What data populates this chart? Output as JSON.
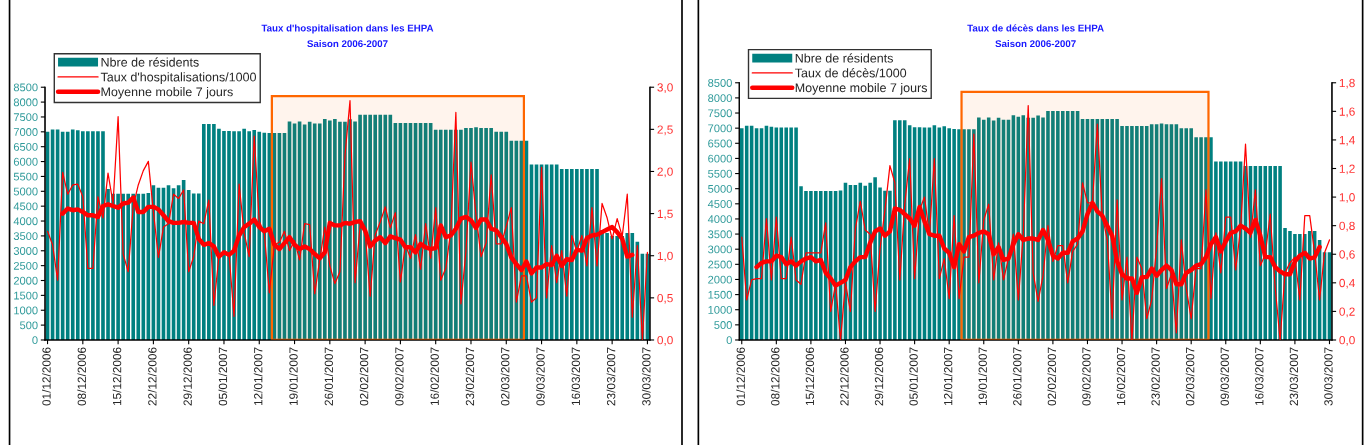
{
  "chart_data": [
    {
      "type": "bar",
      "title": "Taux d'hospitalisation dans les EHPA",
      "subtitle": "Saison 2006-2007",
      "x": [
        "2006-12-01",
        "2006-12-02",
        "2006-12-03",
        "2006-12-04",
        "2006-12-05",
        "2006-12-06",
        "2006-12-07",
        "2006-12-08",
        "2006-12-09",
        "2006-12-10",
        "2006-12-11",
        "2006-12-12",
        "2006-12-13",
        "2006-12-14",
        "2006-12-15",
        "2006-12-16",
        "2006-12-17",
        "2006-12-18",
        "2006-12-19",
        "2006-12-20",
        "2006-12-21",
        "2006-12-22",
        "2006-12-23",
        "2006-12-24",
        "2006-12-25",
        "2006-12-26",
        "2006-12-27",
        "2006-12-28",
        "2006-12-29",
        "2006-12-30",
        "2006-12-31",
        "2007-01-01",
        "2007-01-02",
        "2007-01-03",
        "2007-01-04",
        "2007-01-05",
        "2007-01-06",
        "2007-01-07",
        "2007-01-08",
        "2007-01-09",
        "2007-01-10",
        "2007-01-11",
        "2007-01-12",
        "2007-01-13",
        "2007-01-14",
        "2007-01-15",
        "2007-01-16",
        "2007-01-17",
        "2007-01-18",
        "2007-01-19",
        "2007-01-20",
        "2007-01-21",
        "2007-01-22",
        "2007-01-23",
        "2007-01-24",
        "2007-01-25",
        "2007-01-26",
        "2007-01-27",
        "2007-01-28",
        "2007-01-29",
        "2007-01-30",
        "2007-01-31",
        "2007-02-01",
        "2007-02-02",
        "2007-02-03",
        "2007-02-04",
        "2007-02-05",
        "2007-02-06",
        "2007-02-07",
        "2007-02-08",
        "2007-02-09",
        "2007-02-10",
        "2007-02-11",
        "2007-02-12",
        "2007-02-13",
        "2007-02-14",
        "2007-02-15",
        "2007-02-16",
        "2007-02-17",
        "2007-02-18",
        "2007-02-19",
        "2007-02-20",
        "2007-02-21",
        "2007-02-22",
        "2007-02-23",
        "2007-02-24",
        "2007-02-25",
        "2007-02-26",
        "2007-02-27",
        "2007-02-28",
        "2007-03-01",
        "2007-03-02",
        "2007-03-03",
        "2007-03-04",
        "2007-03-05",
        "2007-03-06",
        "2007-03-07",
        "2007-03-08",
        "2007-03-09",
        "2007-03-10",
        "2007-03-11",
        "2007-03-12",
        "2007-03-13",
        "2007-03-14",
        "2007-03-15",
        "2007-03-16",
        "2007-03-17",
        "2007-03-18",
        "2007-03-19",
        "2007-03-20",
        "2007-03-21",
        "2007-03-22",
        "2007-03-23",
        "2007-03-24",
        "2007-03-25",
        "2007-03-26",
        "2007-03-27",
        "2007-03-28",
        "2007-03-29",
        "2007-03-30"
      ],
      "xlim": [
        "2006-11-30T12:00",
        "2007-03-30T12:00"
      ],
      "xticks": [
        {
          "value": "2006-12-01",
          "label": "01/12/2006"
        },
        {
          "value": "2006-12-08",
          "label": "08/12/2006"
        },
        {
          "value": "2006-12-15",
          "label": "15/12/2006"
        },
        {
          "value": "2006-12-22",
          "label": "22/12/2006"
        },
        {
          "value": "2006-12-29",
          "label": "29/12/2006"
        },
        {
          "value": "2007-01-05",
          "label": "05/01/2007"
        },
        {
          "value": "2007-01-12",
          "label": "12/01/2007"
        },
        {
          "value": "2007-01-19",
          "label": "19/01/2007"
        },
        {
          "value": "2007-01-26",
          "label": "26/01/2007"
        },
        {
          "value": "2007-02-02",
          "label": "02/02/2007"
        },
        {
          "value": "2007-02-09",
          "label": "09/02/2007"
        },
        {
          "value": "2007-02-16",
          "label": "16/02/2007"
        },
        {
          "value": "2007-02-23",
          "label": "23/02/2007"
        },
        {
          "value": "2007-03-02",
          "label": "02/03/2007"
        },
        {
          "value": "2007-03-09",
          "label": "09/03/2007"
        },
        {
          "value": "2007-03-16",
          "label": "16/03/2007"
        },
        {
          "value": "2007-03-23",
          "label": "23/03/2007"
        },
        {
          "value": "2007-03-30",
          "label": "30/03/2007"
        }
      ],
      "ylim": [
        0,
        8500
      ],
      "yticks": [
        0,
        500,
        1000,
        1500,
        2000,
        2500,
        3000,
        3500,
        4000,
        4500,
        5000,
        5500,
        6000,
        6500,
        7000,
        7500,
        8000,
        8500
      ],
      "y2lim": [
        0,
        3.0
      ],
      "y2ticks": [
        {
          "value": 0,
          "label": "0,0"
        },
        {
          "value": 0.5,
          "label": "0,5"
        },
        {
          "value": 1.0,
          "label": "1,0"
        },
        {
          "value": 1.5,
          "label": "1,5"
        },
        {
          "value": 2.0,
          "label": "2,0"
        },
        {
          "value": 2.5,
          "label": "2,5"
        },
        {
          "value": 3.0,
          "label": "3,0"
        }
      ],
      "legend": "top left",
      "bands": [
        {
          "axis": "x",
          "from": "2007-01-14T12:00",
          "to": "2007-03-05T12:00",
          "color": "#ff6600"
        }
      ],
      "series": [
        {
          "name": "Nbre de résidents",
          "color": "#008080",
          "values": [
            7000,
            7080,
            7080,
            7000,
            7000,
            7080,
            7050,
            7020,
            7020,
            7020,
            7020,
            7020,
            5080,
            4920,
            4920,
            4920,
            4920,
            4920,
            4920,
            4920,
            4940,
            5200,
            5120,
            5120,
            5200,
            5100,
            5200,
            5380,
            5040,
            4930,
            4930,
            7260,
            7260,
            7260,
            7100,
            7030,
            7030,
            7020,
            7020,
            7100,
            7020,
            7060,
            7000,
            6970,
            6960,
            6960,
            6960,
            6960,
            7350,
            7280,
            7350,
            7250,
            7340,
            7280,
            7280,
            7430,
            7380,
            7430,
            7340,
            7340,
            7420,
            7350,
            7570,
            7570,
            7570,
            7570,
            7570,
            7570,
            7570,
            7300,
            7300,
            7300,
            7300,
            7300,
            7300,
            7300,
            7300,
            7070,
            7070,
            7070,
            7070,
            7070,
            7070,
            7130,
            7130,
            7150,
            7130,
            7130,
            7130,
            7000,
            7000,
            7000,
            6700,
            6700,
            6700,
            6700,
            5900,
            5900,
            5900,
            5900,
            5900,
            5900,
            5750,
            5750,
            5750,
            5750,
            5750,
            5750,
            5750,
            5750,
            3700,
            3600,
            3500,
            3500,
            3500,
            3600,
            3600,
            3300,
            2900,
            2900
          ]
        },
        {
          "name": "Taux d'hospitalisations/1000",
          "type": "line",
          "axis": "y2",
          "color": "#ff0000",
          "values": [
            1.29,
            1.13,
            0.71,
            1.99,
            1.73,
            1.84,
            1.85,
            1.7,
            0.85,
            0.85,
            1.7,
            1.45,
            1.98,
            1.62,
            2.65,
            1.02,
            0.81,
            1.59,
            1.84,
            2.01,
            2.12,
            1.52,
            0.98,
            1.34,
            1.38,
            1.73,
            1.68,
            1.78,
            0.81,
            0.99,
            1.41,
            1.38,
            1.66,
            0.41,
            0.99,
            1.02,
            1.02,
            0.28,
            1.85,
            1.27,
            0.99,
            2.42,
            1.41,
            1.27,
            0.56,
            1.13,
            1.16,
            1.29,
            1.06,
            1.18,
            0.95,
            1.38,
            1.37,
            0.55,
            0.95,
            1.34,
            0.88,
            0.67,
            0.81,
            2.19,
            2.84,
            0.68,
            1.35,
            1.28,
            0.52,
            1.25,
            1.4,
            1.58,
            1.33,
            1.51,
            0.69,
            1.13,
            0.97,
            1.25,
            0.84,
            1.38,
            0.97,
            1.57,
            0.71,
            0.85,
            1.3,
            2.7,
            0.43,
            1.05,
            2.11,
            1.48,
            0.99,
            1.15,
            1.96,
            1.14,
            1.14,
            1.35,
            1.57,
            0.45,
            0.76,
            0.76,
            0.45,
            0.5,
            2.05,
            0.5,
            1.12,
            0.68,
            1.06,
            0.52,
            1.24,
            1.05,
            1.24,
            0.88,
            1.57,
            0.88,
            1.62,
            1.45,
            1.2,
            1.44,
            1.23,
            1.73,
            0.27,
            1.12,
            0.0,
            1.04
          ]
        },
        {
          "name": "Moyenne mobile 7 jours",
          "type": "line",
          "axis": "y2",
          "color": "#ff0000",
          "values": [
            null,
            null,
            null,
            1.5,
            1.56,
            1.54,
            1.55,
            1.52,
            1.48,
            1.48,
            1.46,
            1.59,
            1.61,
            1.59,
            1.57,
            1.62,
            1.63,
            1.69,
            1.52,
            1.52,
            1.58,
            1.58,
            1.55,
            1.48,
            1.41,
            1.39,
            1.39,
            1.4,
            1.39,
            1.39,
            1.2,
            1.13,
            1.15,
            1.11,
            0.99,
            1.04,
            1.01,
            1.06,
            1.24,
            1.34,
            1.38,
            1.43,
            1.34,
            1.29,
            1.32,
            1.13,
            1.08,
            1.15,
            1.22,
            1.13,
            1.08,
            1.11,
            1.08,
            1.02,
            0.97,
            1.04,
            1.39,
            1.36,
            1.36,
            1.39,
            1.38,
            1.4,
            1.41,
            1.3,
            1.11,
            1.18,
            1.22,
            1.15,
            1.23,
            1.21,
            1.19,
            1.1,
            1.1,
            1.04,
            1.14,
            1.1,
            1.08,
            1.09,
            1.36,
            1.22,
            1.24,
            1.32,
            1.44,
            1.46,
            1.42,
            1.33,
            1.43,
            1.43,
            1.32,
            1.3,
            1.22,
            1.14,
            0.98,
            0.9,
            0.83,
            0.93,
            0.79,
            0.86,
            0.86,
            0.9,
            0.89,
            1.0,
            0.88,
            0.96,
            0.95,
            1.07,
            1.06,
            1.21,
            1.24,
            1.25,
            1.28,
            1.31,
            1.34,
            1.28,
            1.2,
            0.99,
            1.01,
            null,
            null,
            null
          ]
        }
      ]
    },
    {
      "type": "bar",
      "title": "Taux de décès dans les EHPA",
      "subtitle": "Saison 2006-2007",
      "x": [
        "2006-12-01",
        "2006-12-02",
        "2006-12-03",
        "2006-12-04",
        "2006-12-05",
        "2006-12-06",
        "2006-12-07",
        "2006-12-08",
        "2006-12-09",
        "2006-12-10",
        "2006-12-11",
        "2006-12-12",
        "2006-12-13",
        "2006-12-14",
        "2006-12-15",
        "2006-12-16",
        "2006-12-17",
        "2006-12-18",
        "2006-12-19",
        "2006-12-20",
        "2006-12-21",
        "2006-12-22",
        "2006-12-23",
        "2006-12-24",
        "2006-12-25",
        "2006-12-26",
        "2006-12-27",
        "2006-12-28",
        "2006-12-29",
        "2006-12-30",
        "2006-12-31",
        "2007-01-01",
        "2007-01-02",
        "2007-01-03",
        "2007-01-04",
        "2007-01-05",
        "2007-01-06",
        "2007-01-07",
        "2007-01-08",
        "2007-01-09",
        "2007-01-10",
        "2007-01-11",
        "2007-01-12",
        "2007-01-13",
        "2007-01-14",
        "2007-01-15",
        "2007-01-16",
        "2007-01-17",
        "2007-01-18",
        "2007-01-19",
        "2007-01-20",
        "2007-01-21",
        "2007-01-22",
        "2007-01-23",
        "2007-01-24",
        "2007-01-25",
        "2007-01-26",
        "2007-01-27",
        "2007-01-28",
        "2007-01-29",
        "2007-01-30",
        "2007-01-31",
        "2007-02-01",
        "2007-02-02",
        "2007-02-03",
        "2007-02-04",
        "2007-02-05",
        "2007-02-06",
        "2007-02-07",
        "2007-02-08",
        "2007-02-09",
        "2007-02-10",
        "2007-02-11",
        "2007-02-12",
        "2007-02-13",
        "2007-02-14",
        "2007-02-15",
        "2007-02-16",
        "2007-02-17",
        "2007-02-18",
        "2007-02-19",
        "2007-02-20",
        "2007-02-21",
        "2007-02-22",
        "2007-02-23",
        "2007-02-24",
        "2007-02-25",
        "2007-02-26",
        "2007-02-27",
        "2007-02-28",
        "2007-03-01",
        "2007-03-02",
        "2007-03-03",
        "2007-03-04",
        "2007-03-05",
        "2007-03-06",
        "2007-03-07",
        "2007-03-08",
        "2007-03-09",
        "2007-03-10",
        "2007-03-11",
        "2007-03-12",
        "2007-03-13",
        "2007-03-14",
        "2007-03-15",
        "2007-03-16",
        "2007-03-17",
        "2007-03-18",
        "2007-03-19",
        "2007-03-20",
        "2007-03-21",
        "2007-03-22",
        "2007-03-23",
        "2007-03-24",
        "2007-03-25",
        "2007-03-26",
        "2007-03-27",
        "2007-03-28",
        "2007-03-29",
        "2007-03-30"
      ],
      "xlim": [
        "2006-11-30T12:00",
        "2007-03-30T12:00"
      ],
      "xticks": [
        {
          "value": "2006-12-01",
          "label": "01/12/2006"
        },
        {
          "value": "2006-12-08",
          "label": "08/12/2006"
        },
        {
          "value": "2006-12-15",
          "label": "15/12/2006"
        },
        {
          "value": "2006-12-22",
          "label": "22/12/2006"
        },
        {
          "value": "2006-12-29",
          "label": "29/12/2006"
        },
        {
          "value": "2007-01-05",
          "label": "05/01/2007"
        },
        {
          "value": "2007-01-12",
          "label": "12/01/2007"
        },
        {
          "value": "2007-01-19",
          "label": "19/01/2007"
        },
        {
          "value": "2007-01-26",
          "label": "26/01/2007"
        },
        {
          "value": "2007-02-02",
          "label": "02/02/2007"
        },
        {
          "value": "2007-02-09",
          "label": "09/02/2007"
        },
        {
          "value": "2007-02-16",
          "label": "16/02/2007"
        },
        {
          "value": "2007-02-23",
          "label": "23/02/2007"
        },
        {
          "value": "2007-03-02",
          "label": "02/03/2007"
        },
        {
          "value": "2007-03-09",
          "label": "09/03/2007"
        },
        {
          "value": "2007-03-16",
          "label": "16/03/2007"
        },
        {
          "value": "2007-03-23",
          "label": "23/03/2007"
        },
        {
          "value": "2007-03-30",
          "label": "30/03/2007"
        }
      ],
      "ylim": [
        0,
        8500
      ],
      "yticks": [
        0,
        500,
        1000,
        1500,
        2000,
        2500,
        3000,
        3500,
        4000,
        4500,
        5000,
        5500,
        6000,
        6500,
        7000,
        7500,
        8000,
        8500
      ],
      "y2lim": [
        0,
        1.8
      ],
      "y2ticks": [
        {
          "value": 0,
          "label": "0,0"
        },
        {
          "value": 0.2,
          "label": "0,2"
        },
        {
          "value": 0.4,
          "label": "0,4"
        },
        {
          "value": 0.6,
          "label": "0,6"
        },
        {
          "value": 0.8,
          "label": "0,8"
        },
        {
          "value": 1.0,
          "label": "1,0"
        },
        {
          "value": 1.2,
          "label": "1,2"
        },
        {
          "value": 1.4,
          "label": "1,4"
        },
        {
          "value": 1.6,
          "label": "1,6"
        },
        {
          "value": 1.8,
          "label": "1,8"
        }
      ],
      "legend": "top left",
      "bands": [
        {
          "axis": "x",
          "from": "2007-01-14T12:00",
          "to": "2007-03-05T12:00",
          "color": "#ff6600"
        }
      ],
      "series": [
        {
          "name": "Nbre de résidents",
          "color": "#008080",
          "values": [
            7000,
            7080,
            7080,
            7000,
            7000,
            7080,
            7050,
            7020,
            7020,
            7020,
            7020,
            7020,
            5080,
            4920,
            4920,
            4920,
            4920,
            4920,
            4920,
            4920,
            4940,
            5200,
            5120,
            5120,
            5200,
            5100,
            5200,
            5380,
            5040,
            4930,
            4930,
            7260,
            7260,
            7260,
            7100,
            7030,
            7030,
            7020,
            7020,
            7100,
            7020,
            7060,
            7000,
            6970,
            6960,
            6960,
            6960,
            6960,
            7350,
            7280,
            7350,
            7250,
            7340,
            7280,
            7280,
            7430,
            7380,
            7430,
            7340,
            7340,
            7420,
            7350,
            7570,
            7570,
            7570,
            7570,
            7570,
            7570,
            7570,
            7300,
            7300,
            7300,
            7300,
            7300,
            7300,
            7300,
            7300,
            7070,
            7070,
            7070,
            7070,
            7070,
            7070,
            7130,
            7130,
            7150,
            7130,
            7130,
            7130,
            7000,
            7000,
            7000,
            6700,
            6700,
            6700,
            6700,
            5900,
            5900,
            5900,
            5900,
            5900,
            5900,
            5750,
            5750,
            5750,
            5750,
            5750,
            5750,
            5750,
            5750,
            3700,
            3600,
            3500,
            3500,
            3500,
            3600,
            3600,
            3300,
            2900,
            2900
          ]
        },
        {
          "name": "Taux de décès/1000",
          "type": "line",
          "axis": "y2",
          "color": "#ff0000",
          "values": [
            0.72,
            0.28,
            0.42,
            0.43,
            0.43,
            0.85,
            0.42,
            0.86,
            0.43,
            0.43,
            0.72,
            0.42,
            0.39,
            0.61,
            0.61,
            0.61,
            0.61,
            0.82,
            0.2,
            0.39,
            0.0,
            0.4,
            0.2,
            0.78,
            0.97,
            0.77,
            0.74,
            0.2,
            0.64,
            0.91,
            1.22,
            1.1,
            0.42,
            0.95,
            1.27,
            0.43,
            0.91,
            1.0,
            0.74,
            1.27,
            0.43,
            0.57,
            0.29,
            0.87,
            0.29,
            0.58,
            0.58,
            1.44,
            0.4,
            0.84,
            0.95,
            0.42,
            0.68,
            0.42,
            0.57,
            0.74,
            0.28,
            0.74,
            1.64,
            0.47,
            0.27,
            0.45,
            0.8,
            0.55,
            0.66,
            0.66,
            0.4,
            0.62,
            0.67,
            1.1,
            0.96,
            0.96,
            1.51,
            0.87,
            0.7,
            0.15,
            0.98,
            0.28,
            0.58,
            0.0,
            0.58,
            0.5,
            0.15,
            0.28,
            0.65,
            1.13,
            0.36,
            0.46,
            0.05,
            0.7,
            0.36,
            0.15,
            0.5,
            0.5,
            1.05,
            0.29,
            0.75,
            0.47,
            0.86,
            0.86,
            0.49,
            0.78,
            1.37,
            0.72,
            1.05,
            0.52,
            0.6,
            0.88,
            0.37,
            0.0,
            0.47,
            0.54,
            0.58,
            0.28,
            0.87,
            0.87,
            0.61,
            0.28,
            0.61,
            0.7
          ]
        },
        {
          "name": "Moyenne mobile 7 jours",
          "type": "line",
          "axis": "y2",
          "color": "#ff0000",
          "values": [
            null,
            null,
            null,
            0.51,
            0.54,
            0.55,
            0.55,
            0.59,
            0.58,
            0.53,
            0.55,
            0.52,
            0.55,
            0.57,
            0.58,
            0.55,
            0.56,
            0.47,
            0.43,
            0.38,
            0.4,
            0.42,
            0.51,
            0.55,
            0.58,
            0.58,
            0.68,
            0.76,
            0.78,
            0.73,
            0.76,
            0.92,
            0.91,
            0.88,
            0.85,
            0.8,
            0.93,
            0.83,
            0.74,
            0.73,
            0.73,
            0.64,
            0.61,
            0.51,
            0.67,
            0.62,
            0.72,
            0.73,
            0.75,
            0.76,
            0.74,
            0.6,
            0.65,
            0.56,
            0.57,
            0.67,
            0.74,
            0.7,
            0.71,
            0.71,
            0.7,
            0.77,
            0.7,
            0.59,
            0.57,
            0.61,
            0.61,
            0.69,
            0.71,
            0.76,
            0.88,
            0.96,
            0.9,
            0.87,
            0.8,
            0.73,
            0.55,
            0.46,
            0.43,
            0.43,
            0.33,
            0.44,
            0.44,
            0.5,
            0.45,
            0.49,
            0.52,
            0.49,
            0.39,
            0.39,
            0.47,
            0.49,
            0.52,
            0.53,
            0.58,
            0.67,
            0.72,
            0.62,
            0.69,
            0.75,
            0.76,
            0.8,
            0.78,
            0.75,
            0.84,
            0.73,
            0.58,
            0.58,
            0.51,
            0.48,
            0.46,
            0.46,
            0.55,
            0.59,
            0.61,
            0.57,
            0.58,
            0.65,
            null,
            null
          ]
        }
      ]
    }
  ]
}
